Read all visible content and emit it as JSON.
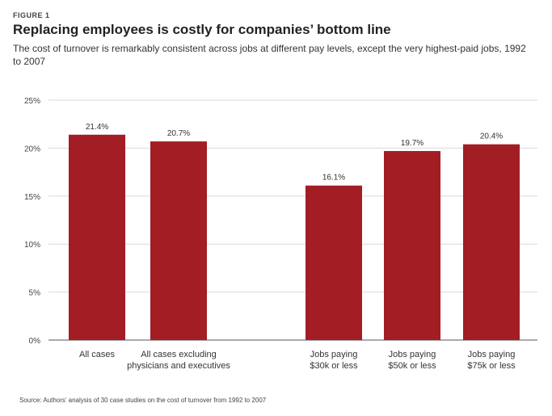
{
  "figure_label": "FIGURE 1",
  "title": "Replacing employees is costly for companies’ bottom line",
  "subtitle": "The cost of turnover is remarkably consistent across jobs at different pay levels, except the very highest-paid jobs, 1992 to 2007",
  "source": "Source: Authors’ analysis of 30 case studies on the cost of turnover from 1992 to 2007",
  "colors": {
    "bar": "#a31d24",
    "grid": "#d9d9d9",
    "axis": "#555555"
  },
  "chart_data": {
    "type": "bar",
    "categories": [
      [
        "All cases"
      ],
      [
        "All cases excluding",
        "physicians and executives"
      ],
      [
        "Jobs paying",
        "$30k or less"
      ],
      [
        "Jobs paying",
        "$50k or less"
      ],
      [
        "Jobs paying",
        "$75k or less"
      ]
    ],
    "values": [
      21.4,
      20.7,
      16.1,
      19.7,
      20.4
    ],
    "value_labels": [
      "21.4%",
      "20.7%",
      "16.1%",
      "19.7%",
      "20.4%"
    ],
    "ylim": [
      0,
      25
    ],
    "yticks": [
      0,
      5,
      10,
      15,
      20,
      25
    ],
    "ytick_labels": [
      "0%",
      "5%",
      "10%",
      "15%",
      "20%",
      "25%"
    ],
    "grid": true
  }
}
